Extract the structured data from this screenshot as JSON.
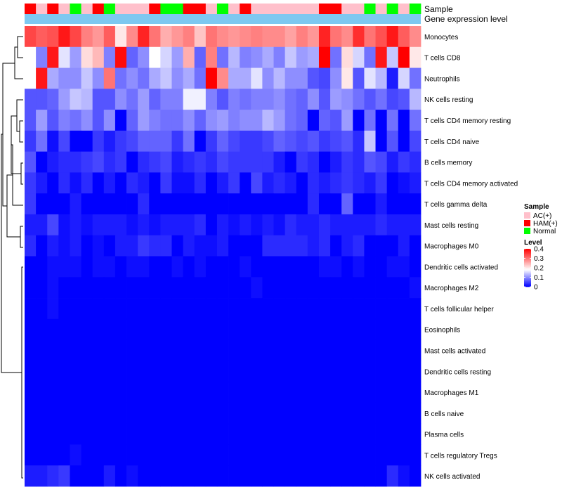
{
  "chart_data": {
    "type": "heatmap",
    "title": "",
    "annotation_labels": [
      "Sample",
      "Gene expression level"
    ],
    "rows": [
      "Monocytes",
      "T cells CD8",
      "Neutrophils",
      "NK cells resting",
      "T cells CD4 memory resting",
      "T cells CD4 naive",
      "B cells memory",
      "T cells CD4 memory activated",
      "T cells gamma delta",
      "Mast cells resting",
      "Macrophages M0",
      "Dendritic cells activated",
      "Macrophages M2",
      "T cells follicular helper",
      "Eosinophils",
      "Mast cells activated",
      "Dendritic cells resting",
      "Macrophages M1",
      "B cells naive",
      "Plasma cells",
      "T cells regulatory  Tregs",
      "NK cells activated"
    ],
    "sample_groups": [
      "HAM(+)",
      "AC(+)",
      "HAM(+)",
      "AC(+)",
      "Normal",
      "AC(+)",
      "HAM(+)",
      "Normal",
      "AC(+)",
      "AC(+)",
      "AC(+)",
      "HAM(+)",
      "Normal",
      "Normal",
      "HAM(+)",
      "HAM(+)",
      "AC(+)",
      "Normal",
      "AC(+)",
      "HAM(+)",
      "AC(+)",
      "AC(+)",
      "AC(+)",
      "AC(+)",
      "AC(+)",
      "AC(+)",
      "HAM(+)",
      "HAM(+)",
      "AC(+)",
      "AC(+)",
      "Normal",
      "AC(+)",
      "Normal",
      "AC(+)",
      "Normal"
    ],
    "values": [
      [
        0.34,
        0.32,
        0.33,
        0.38,
        0.34,
        0.29,
        0.27,
        0.32,
        0.2,
        0.28,
        0.37,
        0.3,
        0.25,
        0.27,
        0.29,
        0.23,
        0.3,
        0.28,
        0.27,
        0.28,
        0.29,
        0.28,
        0.28,
        0.26,
        0.29,
        0.27,
        0.37,
        0.3,
        0.28,
        0.36,
        0.3,
        0.33,
        0.38,
        0.32,
        0.28
      ],
      [
        0.18,
        0.09,
        0.38,
        0.16,
        0.11,
        0.21,
        0.24,
        0.09,
        0.39,
        0.07,
        0.1,
        0.18,
        0.15,
        0.11,
        0.25,
        0.07,
        0.29,
        0.08,
        0.13,
        0.09,
        0.1,
        0.12,
        0.09,
        0.14,
        0.11,
        0.12,
        0.4,
        0.08,
        0.21,
        0.15,
        0.08,
        0.38,
        0.14,
        0.4,
        0.2
      ],
      [
        0.18,
        0.38,
        0.12,
        0.1,
        0.1,
        0.14,
        0.1,
        0.3,
        0.08,
        0.1,
        0.08,
        0.12,
        0.14,
        0.1,
        0.12,
        0.08,
        0.4,
        0.28,
        0.12,
        0.12,
        0.16,
        0.1,
        0.13,
        0.1,
        0.1,
        0.06,
        0.05,
        0.1,
        0.2,
        0.06,
        0.16,
        0.13,
        0.02,
        0.15,
        0.08
      ],
      [
        0.06,
        0.06,
        0.07,
        0.11,
        0.14,
        0.13,
        0.06,
        0.06,
        0.1,
        0.08,
        0.11,
        0.07,
        0.09,
        0.09,
        0.17,
        0.17,
        0.09,
        0.06,
        0.09,
        0.08,
        0.09,
        0.09,
        0.1,
        0.08,
        0.07,
        0.1,
        0.06,
        0.11,
        0.1,
        0.08,
        0.06,
        0.08,
        0.05,
        0.06,
        0.13
      ],
      [
        0.06,
        0.11,
        0.06,
        0.09,
        0.08,
        0.1,
        0.06,
        0.1,
        0.0,
        0.07,
        0.11,
        0.09,
        0.08,
        0.08,
        0.1,
        0.07,
        0.1,
        0.11,
        0.09,
        0.1,
        0.1,
        0.13,
        0.11,
        0.08,
        0.07,
        0.0,
        0.07,
        0.06,
        0.11,
        0.0,
        0.08,
        0.0,
        0.08,
        0.0,
        0.08
      ],
      [
        0.04,
        0.08,
        0.01,
        0.05,
        0.0,
        0.0,
        0.04,
        0.02,
        0.04,
        0.05,
        0.07,
        0.07,
        0.07,
        0.04,
        0.08,
        0.0,
        0.04,
        0.07,
        0.05,
        0.04,
        0.04,
        0.05,
        0.07,
        0.06,
        0.05,
        0.06,
        0.04,
        0.05,
        0.06,
        0.03,
        0.14,
        0.0,
        0.06,
        0.0,
        0.05
      ],
      [
        0.06,
        0.0,
        0.02,
        0.03,
        0.03,
        0.04,
        0.05,
        0.03,
        0.04,
        0.0,
        0.03,
        0.04,
        0.05,
        0.02,
        0.03,
        0.04,
        0.03,
        0.05,
        0.04,
        0.04,
        0.04,
        0.04,
        0.02,
        0.0,
        0.04,
        0.03,
        0.0,
        0.02,
        0.04,
        0.03,
        0.06,
        0.05,
        0.02,
        0.04,
        0.03
      ],
      [
        0.04,
        0.02,
        0.0,
        0.03,
        0.01,
        0.03,
        0.0,
        0.02,
        0.0,
        0.03,
        0.02,
        0.0,
        0.04,
        0.01,
        0.01,
        0.03,
        0.0,
        0.02,
        0.04,
        0.0,
        0.05,
        0.02,
        0.03,
        0.02,
        0.0,
        0.03,
        0.02,
        0.03,
        0.04,
        0.03,
        0.02,
        0.04,
        0.0,
        0.01,
        0.02
      ],
      [
        0.04,
        0.0,
        0.0,
        0.0,
        0.02,
        0.0,
        0.0,
        0.0,
        0.0,
        0.0,
        0.03,
        0.0,
        0.0,
        0.0,
        0.0,
        0.0,
        0.0,
        0.0,
        0.0,
        0.0,
        0.0,
        0.0,
        0.0,
        0.0,
        0.0,
        0.03,
        0.0,
        0.0,
        0.07,
        0.0,
        0.0,
        0.02,
        0.0,
        0.0,
        0.0
      ],
      [
        0.02,
        0.02,
        0.05,
        0.01,
        0.02,
        0.01,
        0.02,
        0.02,
        0.02,
        0.01,
        0.02,
        0.01,
        0.02,
        0.02,
        0.02,
        0.03,
        0.0,
        0.02,
        0.01,
        0.02,
        0.01,
        0.02,
        0.01,
        0.03,
        0.02,
        0.02,
        0.03,
        0.02,
        0.02,
        0.02,
        0.02,
        0.03,
        0.02,
        0.02,
        0.02
      ],
      [
        0.03,
        0.0,
        0.02,
        0.01,
        0.02,
        0.0,
        0.01,
        0.0,
        0.02,
        0.02,
        0.04,
        0.03,
        0.03,
        0.0,
        0.02,
        0.01,
        0.01,
        0.02,
        0.0,
        0.0,
        0.0,
        0.03,
        0.03,
        0.03,
        0.03,
        0.02,
        0.03,
        0.0,
        0.02,
        0.03,
        0.0,
        0.0,
        0.0,
        0.02,
        0.0
      ],
      [
        0.0,
        0.0,
        0.01,
        0.01,
        0.01,
        0.0,
        0.01,
        0.01,
        0.0,
        0.01,
        0.01,
        0.0,
        0.0,
        0.01,
        0.0,
        0.01,
        0.0,
        0.0,
        0.0,
        0.01,
        0.0,
        0.0,
        0.0,
        0.0,
        0.0,
        0.0,
        0.01,
        0.01,
        0.0,
        0.01,
        0.0,
        0.0,
        0.01,
        0.01,
        0.0
      ],
      [
        0.0,
        0.0,
        0.01,
        0.0,
        0.0,
        0.0,
        0.0,
        0.0,
        0.0,
        0.0,
        0.0,
        0.0,
        0.0,
        0.0,
        0.0,
        0.0,
        0.0,
        0.0,
        0.0,
        0.0,
        0.01,
        0.0,
        0.0,
        0.0,
        0.0,
        0.0,
        0.0,
        0.0,
        0.0,
        0.0,
        0.0,
        0.0,
        0.0,
        0.0,
        0.01
      ],
      [
        0.0,
        0.0,
        0.01,
        0.0,
        0.0,
        0.0,
        0.0,
        0.0,
        0.0,
        0.0,
        0.0,
        0.0,
        0.0,
        0.0,
        0.0,
        0.0,
        0.0,
        0.0,
        0.0,
        0.0,
        0.0,
        0.0,
        0.0,
        0.0,
        0.0,
        0.0,
        0.0,
        0.0,
        0.0,
        0.0,
        0.0,
        0.0,
        0.0,
        0.0,
        0.0
      ],
      [
        0.0,
        0.0,
        0.0,
        0.0,
        0.0,
        0.0,
        0.0,
        0.0,
        0.0,
        0.0,
        0.0,
        0.0,
        0.0,
        0.0,
        0.0,
        0.0,
        0.0,
        0.0,
        0.0,
        0.0,
        0.0,
        0.0,
        0.0,
        0.0,
        0.0,
        0.0,
        0.0,
        0.0,
        0.0,
        0.0,
        0.0,
        0.0,
        0.0,
        0.0,
        0.0
      ],
      [
        0.0,
        0.0,
        0.0,
        0.0,
        0.0,
        0.0,
        0.0,
        0.0,
        0.0,
        0.0,
        0.0,
        0.0,
        0.0,
        0.0,
        0.0,
        0.0,
        0.0,
        0.0,
        0.0,
        0.0,
        0.0,
        0.0,
        0.0,
        0.0,
        0.0,
        0.0,
        0.0,
        0.0,
        0.0,
        0.0,
        0.0,
        0.0,
        0.0,
        0.0,
        0.0
      ],
      [
        0.0,
        0.0,
        0.0,
        0.0,
        0.0,
        0.0,
        0.0,
        0.0,
        0.0,
        0.0,
        0.0,
        0.0,
        0.0,
        0.0,
        0.0,
        0.0,
        0.0,
        0.0,
        0.0,
        0.0,
        0.0,
        0.0,
        0.0,
        0.0,
        0.0,
        0.0,
        0.0,
        0.0,
        0.0,
        0.0,
        0.0,
        0.0,
        0.0,
        0.0,
        0.0
      ],
      [
        0.0,
        0.0,
        0.0,
        0.0,
        0.0,
        0.0,
        0.0,
        0.0,
        0.0,
        0.0,
        0.0,
        0.0,
        0.0,
        0.0,
        0.0,
        0.0,
        0.0,
        0.0,
        0.0,
        0.0,
        0.0,
        0.0,
        0.0,
        0.0,
        0.0,
        0.0,
        0.0,
        0.0,
        0.0,
        0.0,
        0.0,
        0.0,
        0.0,
        0.0,
        0.0
      ],
      [
        0.0,
        0.0,
        0.0,
        0.0,
        0.0,
        0.0,
        0.0,
        0.0,
        0.0,
        0.0,
        0.0,
        0.0,
        0.0,
        0.0,
        0.0,
        0.0,
        0.0,
        0.0,
        0.0,
        0.0,
        0.0,
        0.0,
        0.0,
        0.0,
        0.0,
        0.0,
        0.0,
        0.0,
        0.0,
        0.0,
        0.0,
        0.0,
        0.0,
        0.0,
        0.0
      ],
      [
        0.0,
        0.0,
        0.0,
        0.0,
        0.0,
        0.0,
        0.0,
        0.0,
        0.0,
        0.0,
        0.0,
        0.0,
        0.0,
        0.0,
        0.0,
        0.0,
        0.0,
        0.0,
        0.0,
        0.0,
        0.0,
        0.0,
        0.0,
        0.0,
        0.0,
        0.0,
        0.0,
        0.0,
        0.0,
        0.0,
        0.0,
        0.0,
        0.0,
        0.0,
        0.0
      ],
      [
        0.0,
        0.0,
        0.0,
        0.0,
        0.01,
        0.0,
        0.0,
        0.0,
        0.0,
        0.0,
        0.0,
        0.0,
        0.0,
        0.0,
        0.0,
        0.0,
        0.0,
        0.0,
        0.0,
        0.0,
        0.0,
        0.0,
        0.0,
        0.0,
        0.0,
        0.0,
        0.0,
        0.0,
        0.0,
        0.0,
        0.0,
        0.0,
        0.0,
        0.0,
        0.0
      ],
      [
        0.02,
        0.02,
        0.03,
        0.04,
        0.0,
        0.0,
        0.0,
        0.02,
        0.0,
        0.01,
        0.0,
        0.0,
        0.0,
        0.0,
        0.0,
        0.0,
        0.0,
        0.0,
        0.0,
        0.0,
        0.0,
        0.0,
        0.0,
        0.0,
        0.0,
        0.0,
        0.0,
        0.0,
        0.0,
        0.0,
        0.0,
        0.0,
        0.03,
        0.01,
        0.0
      ]
    ],
    "gene_expression_color": "#7ec8f0",
    "color_scale": {
      "min": 0,
      "max": 0.4,
      "low": "#0000ff",
      "mid": "#ffffff",
      "high": "#ff0000",
      "mid_value": 0.18
    },
    "legend": {
      "sample_title": "Sample",
      "sample_items": [
        {
          "label": "AC(+)",
          "color": "#ffc0cb"
        },
        {
          "label": "HAM(+)",
          "color": "#ff0000"
        },
        {
          "label": "Normal",
          "color": "#00ff00"
        }
      ],
      "level_title": "Level",
      "level_ticks": [
        "0.4",
        "0.3",
        "0.2",
        "0.1",
        "0"
      ],
      "level_tick_values": [
        0.4,
        0.3,
        0.2,
        0.1,
        0
      ],
      "placement": "right"
    }
  }
}
